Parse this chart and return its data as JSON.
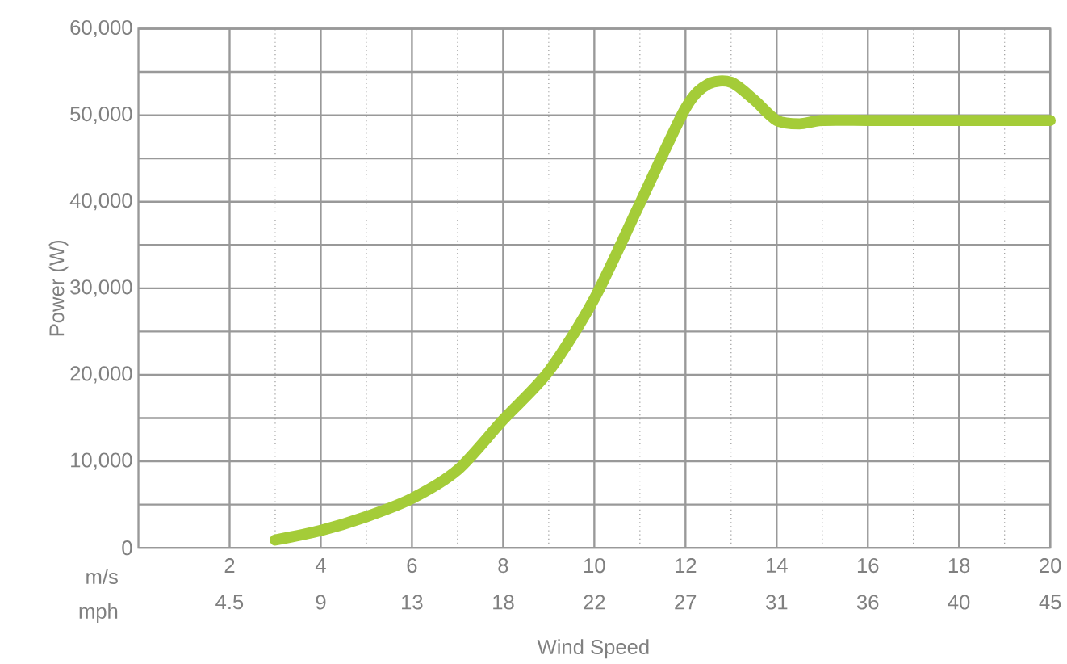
{
  "chart_data": {
    "type": "line",
    "xlabel": "Wind Speed",
    "ylabel": "Power (W)",
    "annotations": [
      "m/s",
      "mph"
    ],
    "xlim": [
      0,
      20
    ],
    "xticks": [
      2,
      4,
      6,
      8,
      10,
      12,
      14,
      16,
      18,
      20
    ],
    "x2lim": [
      0,
      44.74
    ],
    "x2ticks": [
      {
        "value": 4.47,
        "label": "4.5"
      },
      {
        "value": 8.95,
        "label": "9"
      },
      {
        "value": 13.42,
        "label": "13"
      },
      {
        "value": 17.9,
        "label": "18"
      },
      {
        "value": 22.37,
        "label": "22"
      },
      {
        "value": 26.84,
        "label": "27"
      },
      {
        "value": 31.32,
        "label": "31"
      },
      {
        "value": 35.79,
        "label": "36"
      },
      {
        "value": 40.26,
        "label": "40"
      },
      {
        "value": 44.74,
        "label": "45"
      }
    ],
    "ylim": [
      0,
      60000
    ],
    "yticks": [
      {
        "value": 0,
        "label": "0"
      },
      {
        "value": 10000,
        "label": "10,000"
      },
      {
        "value": 20000,
        "label": "20,000"
      },
      {
        "value": 30000,
        "label": "30,000"
      },
      {
        "value": 40000,
        "label": "40,000"
      },
      {
        "value": 50000,
        "label": "50,000"
      },
      {
        "value": 60000,
        "label": "60,000"
      }
    ],
    "grid": true,
    "marker": "none",
    "line_style": "solid",
    "series": [
      {
        "color": "#a4cc38",
        "x": [
          3,
          4,
          5,
          6,
          7,
          8,
          9,
          10,
          11,
          12,
          12.5,
          13,
          13.5,
          14,
          14.5,
          15,
          16,
          17,
          18,
          19,
          20
        ],
        "values": [
          900,
          2000,
          3600,
          5700,
          9000,
          14800,
          20400,
          28800,
          39800,
          50800,
          53600,
          53800,
          51800,
          49400,
          49000,
          49400,
          49400,
          49400,
          49400,
          49400,
          49400
        ]
      }
    ]
  }
}
